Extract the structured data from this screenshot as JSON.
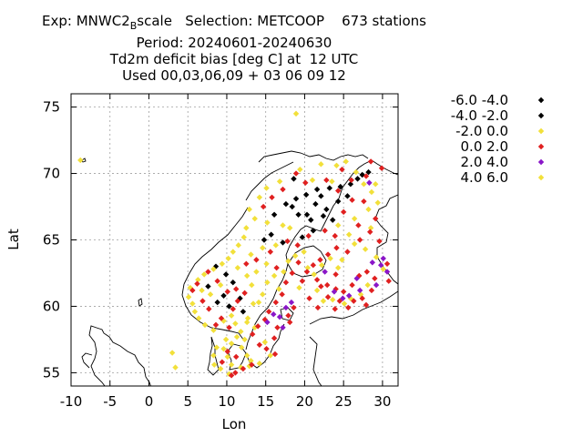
{
  "title": {
    "line1_prefix": "Exp: MNWC2",
    "line1_sub": "B",
    "line1_suffix": "scale   Selection: METCOOP    673 stations",
    "line2": "Period: 20240601-20240630",
    "line3": "Td2m deficit bias [deg C] at  12 UTC",
    "line4": "Used 00,03,06,09 + 03 06 09 12"
  },
  "chart_data": {
    "type": "scatter",
    "xlabel": "Lon",
    "ylabel": "Lat",
    "xlim": [
      -10,
      32
    ],
    "ylim": [
      54,
      76
    ],
    "xticks": [
      -10,
      -5,
      0,
      5,
      10,
      15,
      20,
      25,
      30
    ],
    "yticks": [
      55,
      60,
      65,
      70,
      75
    ],
    "xtick_labels": [
      "-10",
      "-5",
      "0",
      "5",
      "10",
      "15",
      "20",
      "25",
      "30"
    ],
    "ytick_labels": [
      "55",
      "60",
      "65",
      "70",
      "75"
    ],
    "grid": true,
    "legend_placement": "right",
    "series": [
      {
        "name": "-6.0 -4.0",
        "color": "#000000",
        "points": []
      },
      {
        "name": "-4.0 -2.0",
        "color": "#000000",
        "points": [
          [
            26.8,
            69.6
          ],
          [
            27.4,
            69.9
          ],
          [
            28.2,
            70.1
          ],
          [
            25.9,
            69.2
          ],
          [
            24.6,
            69.0
          ],
          [
            23.2,
            68.9
          ],
          [
            21.6,
            68.8
          ],
          [
            20.2,
            68.4
          ],
          [
            18.9,
            68.1
          ],
          [
            18.4,
            67.5
          ],
          [
            19.2,
            66.9
          ],
          [
            20.8,
            66.5
          ],
          [
            22.4,
            66.8
          ],
          [
            23.6,
            66.5
          ],
          [
            21.1,
            65.7
          ],
          [
            19.7,
            65.2
          ],
          [
            17.2,
            64.8
          ],
          [
            15.7,
            65.4
          ],
          [
            14.8,
            65.0
          ],
          [
            21.4,
            67.7
          ],
          [
            22.8,
            67.3
          ],
          [
            17.6,
            67.7
          ],
          [
            16.1,
            66.9
          ],
          [
            20.3,
            66.9
          ],
          [
            24.3,
            67.9
          ],
          [
            25.5,
            68.3
          ],
          [
            9.6,
            60.8
          ],
          [
            8.8,
            60.3
          ],
          [
            10.3,
            60.0
          ],
          [
            11.7,
            60.6
          ],
          [
            7.6,
            61.5
          ],
          [
            10.8,
            61.8
          ],
          [
            12.1,
            59.6
          ],
          [
            8.6,
            63.0
          ],
          [
            9.9,
            62.4
          ],
          [
            18.6,
            69.6
          ],
          [
            22.1,
            68.3
          ]
        ]
      },
      {
        "name": "-2.0 0.0",
        "color": "#f2e03a",
        "points": [
          [
            -8.8,
            71.0
          ],
          [
            18.9,
            74.5
          ],
          [
            3.0,
            56.5
          ],
          [
            3.4,
            55.4
          ],
          [
            22.1,
            70.7
          ],
          [
            19.4,
            70.3
          ],
          [
            16.8,
            69.4
          ],
          [
            15.1,
            68.9
          ],
          [
            14.2,
            68.2
          ],
          [
            12.9,
            67.3
          ],
          [
            13.6,
            66.6
          ],
          [
            12.5,
            65.9
          ],
          [
            12.2,
            65.2
          ],
          [
            11.5,
            64.6
          ],
          [
            10.8,
            64.1
          ],
          [
            10.2,
            63.6
          ],
          [
            9.4,
            63.2
          ],
          [
            8.3,
            62.8
          ],
          [
            7.1,
            62.4
          ],
          [
            6.3,
            62.0
          ],
          [
            5.3,
            61.4
          ],
          [
            5.1,
            60.7
          ],
          [
            5.6,
            60.2
          ],
          [
            5.9,
            59.6
          ],
          [
            6.4,
            59.1
          ],
          [
            7.2,
            58.6
          ],
          [
            8.3,
            58.2
          ],
          [
            9.6,
            58.9
          ],
          [
            10.6,
            59.3
          ],
          [
            11.1,
            58.7
          ],
          [
            11.8,
            58.1
          ],
          [
            12.3,
            57.5
          ],
          [
            11.9,
            56.9
          ],
          [
            12.6,
            56.3
          ],
          [
            13.1,
            55.9
          ],
          [
            12.9,
            55.5
          ],
          [
            11.8,
            55.4
          ],
          [
            10.6,
            55.6
          ],
          [
            10.1,
            56.2
          ],
          [
            9.6,
            56.8
          ],
          [
            8.7,
            56.9
          ],
          [
            8.3,
            56.3
          ],
          [
            8.4,
            55.6
          ],
          [
            9.2,
            55.3
          ],
          [
            10.3,
            54.9
          ],
          [
            14.2,
            55.7
          ],
          [
            15.6,
            56.3
          ],
          [
            14.9,
            57.3
          ],
          [
            13.6,
            58.4
          ],
          [
            12.7,
            59.1
          ],
          [
            13.4,
            60.2
          ],
          [
            14.6,
            60.9
          ],
          [
            15.2,
            61.8
          ],
          [
            16.1,
            62.3
          ],
          [
            17.3,
            62.6
          ],
          [
            17.9,
            63.4
          ],
          [
            18.8,
            63.8
          ],
          [
            19.9,
            64.1
          ],
          [
            16.7,
            61.3
          ],
          [
            15.1,
            63.2
          ],
          [
            13.8,
            62.6
          ],
          [
            12.6,
            62.3
          ],
          [
            11.4,
            62.9
          ],
          [
            13.1,
            63.9
          ],
          [
            14.6,
            64.4
          ],
          [
            16.3,
            64.6
          ],
          [
            18.1,
            65.9
          ],
          [
            15.2,
            66.3
          ],
          [
            17.2,
            66.1
          ],
          [
            13.2,
            61.6
          ],
          [
            24.1,
            70.6
          ],
          [
            25.3,
            70.9
          ],
          [
            26.6,
            70.1
          ],
          [
            29.1,
            69.2
          ],
          [
            28.6,
            68.6
          ],
          [
            29.4,
            67.8
          ],
          [
            28.2,
            67.3
          ],
          [
            24.3,
            66.1
          ],
          [
            25.7,
            65.4
          ],
          [
            26.4,
            64.7
          ],
          [
            27.8,
            64.3
          ],
          [
            29.2,
            63.7
          ],
          [
            30.1,
            62.8
          ],
          [
            28.1,
            61.6
          ],
          [
            27.2,
            60.9
          ],
          [
            25.9,
            60.6
          ],
          [
            25.1,
            60.2
          ],
          [
            23.6,
            60.5
          ],
          [
            22.4,
            60.4
          ],
          [
            21.6,
            61.2
          ],
          [
            22.2,
            63.1
          ],
          [
            23.3,
            63.6
          ],
          [
            21.2,
            62.4
          ],
          [
            24.3,
            62.9
          ],
          [
            24.8,
            63.5
          ],
          [
            14.1,
            60.3
          ],
          [
            7.9,
            60.9
          ],
          [
            6.8,
            61.2
          ],
          [
            9.2,
            61.6
          ],
          [
            12.6,
            58.8
          ],
          [
            11.3,
            57.7
          ],
          [
            10.6,
            57.2
          ],
          [
            9.9,
            57.5
          ],
          [
            27.6,
            69.2
          ],
          [
            21.0,
            69.5
          ],
          [
            23.5,
            69.4
          ],
          [
            26.4,
            66.6
          ],
          [
            28.5,
            65.9
          ],
          [
            19.3,
            61.4
          ],
          [
            20.4,
            62.9
          ]
        ]
      },
      {
        "name": "0.0 2.0",
        "color": "#e02020",
        "points": [
          [
            29.9,
            70.4
          ],
          [
            28.5,
            70.9
          ],
          [
            27.9,
            69.8
          ],
          [
            26.1,
            68.0
          ],
          [
            25.0,
            67.1
          ],
          [
            26.9,
            66.1
          ],
          [
            28.4,
            65.6
          ],
          [
            29.6,
            64.9
          ],
          [
            27.1,
            65.0
          ],
          [
            25.5,
            64.1
          ],
          [
            24.1,
            64.4
          ],
          [
            23.0,
            63.9
          ],
          [
            22.0,
            63.5
          ],
          [
            21.1,
            63.1
          ],
          [
            20.3,
            62.6
          ],
          [
            21.6,
            62.0
          ],
          [
            22.9,
            61.6
          ],
          [
            24.0,
            61.3
          ],
          [
            25.0,
            61.1
          ],
          [
            26.1,
            61.6
          ],
          [
            27.0,
            62.3
          ],
          [
            28.0,
            62.6
          ],
          [
            29.0,
            62.1
          ],
          [
            28.6,
            61.2
          ],
          [
            27.4,
            60.6
          ],
          [
            26.3,
            60.4
          ],
          [
            24.5,
            60.4
          ],
          [
            23.0,
            60.7
          ],
          [
            22.1,
            61.5
          ],
          [
            19.2,
            63.3
          ],
          [
            18.4,
            62.5
          ],
          [
            17.6,
            61.8
          ],
          [
            17.1,
            60.9
          ],
          [
            16.3,
            60.3
          ],
          [
            15.4,
            59.6
          ],
          [
            14.9,
            59.0
          ],
          [
            14.0,
            58.5
          ],
          [
            13.3,
            57.9
          ],
          [
            14.2,
            57.1
          ],
          [
            15.1,
            56.8
          ],
          [
            16.1,
            57.6
          ],
          [
            16.5,
            58.4
          ],
          [
            17.9,
            59.3
          ],
          [
            18.6,
            59.9
          ],
          [
            18.1,
            58.8
          ],
          [
            16.2,
            56.4
          ],
          [
            13.2,
            55.6
          ],
          [
            12.1,
            55.3
          ],
          [
            11.1,
            55.0
          ],
          [
            10.6,
            54.8
          ],
          [
            9.4,
            55.8
          ],
          [
            10.1,
            56.6
          ],
          [
            11.2,
            56.2
          ],
          [
            10.3,
            58.4
          ],
          [
            10.8,
            59.8
          ],
          [
            11.4,
            60.4
          ],
          [
            12.3,
            61.0
          ],
          [
            11.2,
            61.3
          ],
          [
            10.1,
            61.1
          ],
          [
            8.8,
            61.9
          ],
          [
            7.6,
            62.6
          ],
          [
            6.2,
            61.7
          ],
          [
            5.6,
            61.2
          ],
          [
            6.9,
            60.4
          ],
          [
            7.7,
            59.8
          ],
          [
            9.3,
            59.1
          ],
          [
            8.6,
            58.6
          ],
          [
            12.5,
            63.2
          ],
          [
            13.8,
            63.5
          ],
          [
            15.6,
            64.1
          ],
          [
            17.8,
            64.9
          ],
          [
            19.1,
            64.6
          ],
          [
            20.5,
            65.3
          ],
          [
            22.6,
            65.7
          ],
          [
            23.9,
            65.3
          ],
          [
            24.3,
            68.7
          ],
          [
            22.8,
            69.5
          ],
          [
            20.1,
            69.3
          ],
          [
            18.9,
            70.0
          ],
          [
            17.2,
            68.8
          ],
          [
            15.8,
            68.2
          ],
          [
            14.7,
            67.5
          ],
          [
            16.4,
            62.9
          ],
          [
            20.6,
            60.6
          ],
          [
            21.7,
            59.9
          ],
          [
            23.9,
            59.8
          ],
          [
            25.6,
            59.9
          ],
          [
            27.9,
            60.1
          ],
          [
            30.8,
            61.9
          ],
          [
            30.6,
            63.2
          ],
          [
            29.1,
            66.6
          ],
          [
            27.6,
            67.9
          ],
          [
            26.0,
            69.5
          ],
          [
            24.8,
            70.3
          ],
          [
            19.7,
            61.9
          ],
          [
            24.0,
            62.4
          ]
        ]
      },
      {
        "name": "2.0 4.0",
        "color": "#8a16c8",
        "points": [
          [
            16.0,
            59.4
          ],
          [
            16.8,
            59.2
          ],
          [
            17.6,
            59.9
          ],
          [
            18.3,
            60.3
          ],
          [
            15.2,
            58.8
          ],
          [
            17.2,
            58.4
          ],
          [
            28.7,
            63.3
          ],
          [
            29.8,
            63.1
          ],
          [
            30.6,
            62.6
          ],
          [
            26.7,
            62.1
          ],
          [
            25.7,
            60.8
          ],
          [
            24.9,
            60.6
          ],
          [
            23.8,
            61.1
          ],
          [
            27.1,
            61.2
          ],
          [
            29.2,
            61.6
          ],
          [
            30.1,
            63.6
          ],
          [
            22.6,
            62.6
          ],
          [
            28.3,
            69.3
          ]
        ]
      },
      {
        "name": "4.0 6.0",
        "color": "#f2e03a",
        "points": []
      }
    ]
  },
  "legend": [
    {
      "label": "-6.0 -4.0",
      "color": "#000000"
    },
    {
      "label": "-4.0 -2.0",
      "color": "#000000"
    },
    {
      "label": "-2.0 0.0",
      "color": "#f2e03a"
    },
    {
      "label": "0.0 2.0",
      "color": "#e02020"
    },
    {
      "label": "2.0 4.0",
      "color": "#8a16c8"
    },
    {
      "label": "4.0 6.0",
      "color": "#f2e03a"
    }
  ]
}
